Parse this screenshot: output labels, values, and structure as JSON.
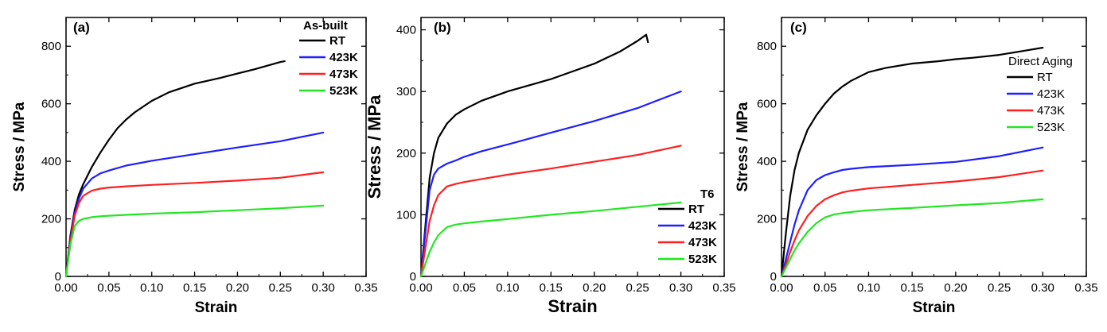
{
  "chart_data": [
    {
      "type": "line",
      "panel_label": "(a)",
      "xlabel": "Strain",
      "ylabel": "Stress / MPa",
      "xlim": [
        0,
        0.35
      ],
      "ylim": [
        0,
        900
      ],
      "xticks": [
        "0.00",
        "0.05",
        "0.10",
        "0.15",
        "0.20",
        "0.25",
        "0.30",
        "0.35"
      ],
      "yticks": [
        "0",
        "200",
        "400",
        "600",
        "800"
      ],
      "grid": false,
      "legend": {
        "title": "As-built",
        "placement": "top-right"
      },
      "series": [
        {
          "name": "RT",
          "color": "#000000",
          "x": [
            0,
            0.005,
            0.01,
            0.015,
            0.02,
            0.03,
            0.04,
            0.05,
            0.06,
            0.07,
            0.08,
            0.1,
            0.12,
            0.15,
            0.18,
            0.2,
            0.22,
            0.25,
            0.255
          ],
          "y": [
            0,
            140,
            230,
            285,
            320,
            380,
            430,
            475,
            515,
            545,
            570,
            610,
            640,
            670,
            690,
            705,
            720,
            745,
            748
          ]
        },
        {
          "name": "423K",
          "color": "#1f1fff",
          "x": [
            0,
            0.005,
            0.01,
            0.015,
            0.02,
            0.03,
            0.04,
            0.05,
            0.07,
            0.1,
            0.15,
            0.2,
            0.25,
            0.3
          ],
          "y": [
            0,
            130,
            220,
            270,
            305,
            340,
            358,
            368,
            385,
            402,
            425,
            448,
            470,
            500
          ]
        },
        {
          "name": "473K",
          "color": "#ff1f1f",
          "x": [
            0,
            0.005,
            0.01,
            0.015,
            0.02,
            0.03,
            0.04,
            0.05,
            0.07,
            0.1,
            0.15,
            0.2,
            0.25,
            0.3
          ],
          "y": [
            0,
            120,
            210,
            255,
            280,
            298,
            305,
            309,
            313,
            318,
            325,
            333,
            343,
            362
          ]
        },
        {
          "name": "523K",
          "color": "#22e622",
          "x": [
            0,
            0.005,
            0.01,
            0.015,
            0.02,
            0.03,
            0.04,
            0.05,
            0.07,
            0.1,
            0.15,
            0.2,
            0.25,
            0.3
          ],
          "y": [
            0,
            110,
            175,
            193,
            200,
            206,
            209,
            211,
            214,
            218,
            223,
            230,
            237,
            246
          ]
        }
      ]
    },
    {
      "type": "line",
      "panel_label": "(b)",
      "xlabel": "Strain",
      "ylabel": "Stress / MPa",
      "xlim": [
        0,
        0.35
      ],
      "ylim": [
        0,
        420
      ],
      "xticks": [
        "0.00",
        "0.05",
        "0.10",
        "0.15",
        "0.20",
        "0.25",
        "0.30",
        "0.35"
      ],
      "yticks": [
        "0",
        "100",
        "200",
        "300",
        "400"
      ],
      "grid": false,
      "legend": {
        "title": "T6",
        "placement": "bottom-right"
      },
      "series": [
        {
          "name": "RT",
          "color": "#000000",
          "x": [
            0,
            0.005,
            0.01,
            0.015,
            0.02,
            0.03,
            0.04,
            0.05,
            0.07,
            0.1,
            0.13,
            0.15,
            0.18,
            0.2,
            0.23,
            0.25,
            0.26,
            0.262
          ],
          "y": [
            0,
            80,
            160,
            200,
            225,
            248,
            262,
            271,
            285,
            300,
            312,
            320,
            335,
            345,
            365,
            382,
            392,
            380
          ]
        },
        {
          "name": "423K",
          "color": "#1f1fff",
          "x": [
            0,
            0.005,
            0.01,
            0.015,
            0.02,
            0.03,
            0.04,
            0.05,
            0.07,
            0.1,
            0.15,
            0.2,
            0.25,
            0.3
          ],
          "y": [
            0,
            70,
            140,
            165,
            175,
            183,
            188,
            194,
            203,
            214,
            233,
            252,
            273,
            300
          ]
        },
        {
          "name": "473K",
          "color": "#ff1f1f",
          "x": [
            0,
            0.005,
            0.01,
            0.015,
            0.02,
            0.03,
            0.04,
            0.05,
            0.07,
            0.1,
            0.15,
            0.2,
            0.25,
            0.3
          ],
          "y": [
            0,
            45,
            90,
            115,
            132,
            146,
            150,
            153,
            158,
            165,
            175,
            186,
            197,
            212
          ]
        },
        {
          "name": "523K",
          "color": "#22e622",
          "x": [
            0,
            0.005,
            0.01,
            0.015,
            0.02,
            0.03,
            0.04,
            0.05,
            0.07,
            0.1,
            0.15,
            0.2,
            0.25,
            0.3
          ],
          "y": [
            0,
            20,
            40,
            55,
            67,
            80,
            84,
            86,
            89,
            93,
            100,
            106,
            113,
            120
          ]
        }
      ]
    },
    {
      "type": "line",
      "panel_label": "(c)",
      "xlabel": "Strain",
      "ylabel": "Stress / MPa",
      "xlim": [
        0,
        0.35
      ],
      "ylim": [
        0,
        900
      ],
      "xticks": [
        "0.00",
        "0.05",
        "0.10",
        "0.15",
        "0.20",
        "0.25",
        "0.30",
        "0.35"
      ],
      "yticks": [
        "0",
        "200",
        "400",
        "600",
        "800"
      ],
      "grid": false,
      "legend": {
        "title": "Direct Aging",
        "placement": "top-right"
      },
      "series": [
        {
          "name": "RT",
          "color": "#000000",
          "x": [
            0,
            0.005,
            0.01,
            0.015,
            0.02,
            0.03,
            0.04,
            0.05,
            0.06,
            0.07,
            0.08,
            0.1,
            0.12,
            0.15,
            0.18,
            0.2,
            0.22,
            0.25,
            0.28,
            0.3
          ],
          "y": [
            0,
            150,
            280,
            370,
            430,
            510,
            560,
            600,
            635,
            660,
            680,
            710,
            725,
            740,
            748,
            755,
            760,
            770,
            785,
            795
          ]
        },
        {
          "name": "423K",
          "color": "#1f1fff",
          "x": [
            0,
            0.005,
            0.01,
            0.015,
            0.02,
            0.03,
            0.04,
            0.05,
            0.06,
            0.07,
            0.08,
            0.1,
            0.15,
            0.2,
            0.25,
            0.3
          ],
          "y": [
            0,
            60,
            120,
            180,
            230,
            300,
            335,
            352,
            362,
            370,
            374,
            380,
            388,
            398,
            418,
            448
          ]
        },
        {
          "name": "473K",
          "color": "#ff1f1f",
          "x": [
            0,
            0.005,
            0.01,
            0.015,
            0.02,
            0.03,
            0.04,
            0.05,
            0.06,
            0.07,
            0.08,
            0.1,
            0.15,
            0.2,
            0.25,
            0.3
          ],
          "y": [
            0,
            40,
            85,
            125,
            160,
            210,
            245,
            268,
            282,
            292,
            298,
            306,
            318,
            330,
            345,
            368
          ]
        },
        {
          "name": "523K",
          "color": "#22e622",
          "x": [
            0,
            0.005,
            0.01,
            0.015,
            0.02,
            0.03,
            0.04,
            0.05,
            0.06,
            0.07,
            0.08,
            0.1,
            0.15,
            0.2,
            0.25,
            0.3
          ],
          "y": [
            0,
            30,
            60,
            90,
            115,
            155,
            185,
            205,
            215,
            220,
            224,
            230,
            238,
            247,
            255,
            268
          ]
        }
      ]
    }
  ]
}
